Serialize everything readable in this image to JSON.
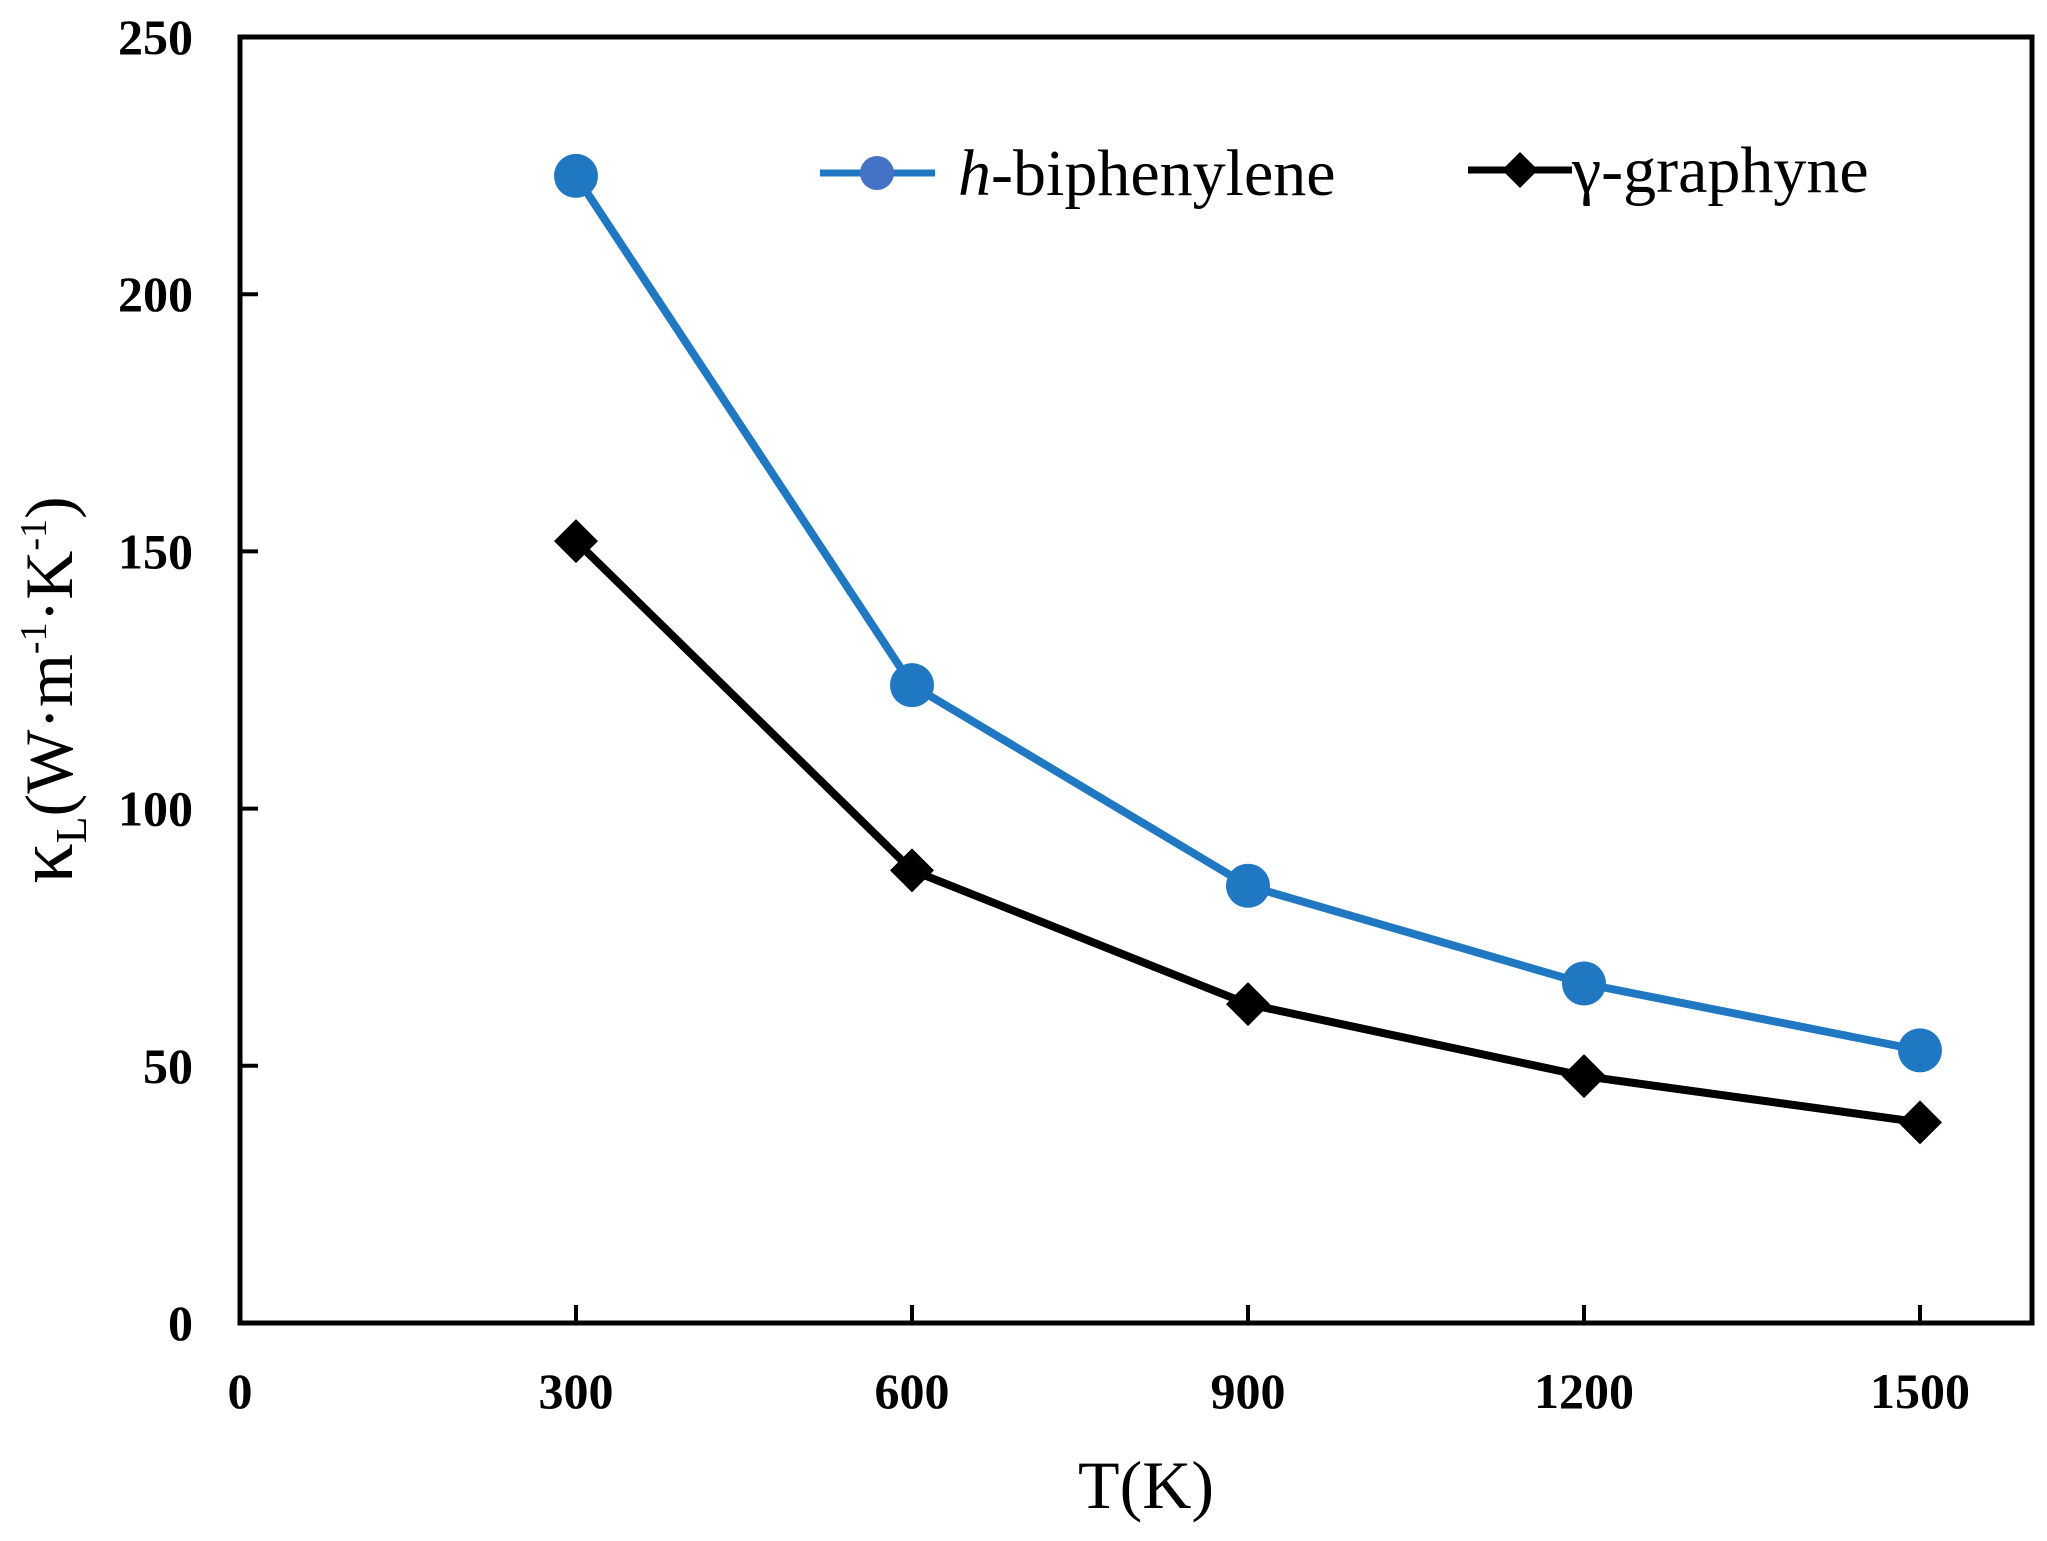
{
  "chart_data": {
    "type": "line",
    "title": "",
    "xlabel": "T(K)",
    "ylabel": {
      "symbol": "κ",
      "subscript": "L",
      "text": "(W·m",
      "exp1": "-1",
      "mid": "·K",
      "exp2": "-1",
      "close": ")"
    },
    "xlim": [
      0,
      1600
    ],
    "ylim": [
      0,
      250
    ],
    "x_ticks": [
      "0",
      "300",
      "600",
      "900",
      "1200",
      "1500"
    ],
    "x_tick_values": [
      0,
      300,
      600,
      900,
      1200,
      1500
    ],
    "y_ticks": [
      "0",
      "50",
      "100",
      "150",
      "200",
      "250"
    ],
    "y_tick_values": [
      0,
      50,
      100,
      150,
      200,
      250
    ],
    "x": [
      300,
      600,
      900,
      1200,
      1500
    ],
    "series": [
      {
        "name_prefix": "h",
        "name_suffix": "-biphenylene",
        "values": [
          223,
          124,
          85,
          66,
          53
        ],
        "color": "#1f78c1",
        "legend_marker_color": "#4472c4",
        "marker": "circle"
      },
      {
        "name": "γ-graphyne",
        "values": [
          152,
          88,
          62,
          48,
          39
        ],
        "color": "#000000",
        "marker": "diamond"
      }
    ],
    "grid": false,
    "legend_position": "top-right"
  }
}
